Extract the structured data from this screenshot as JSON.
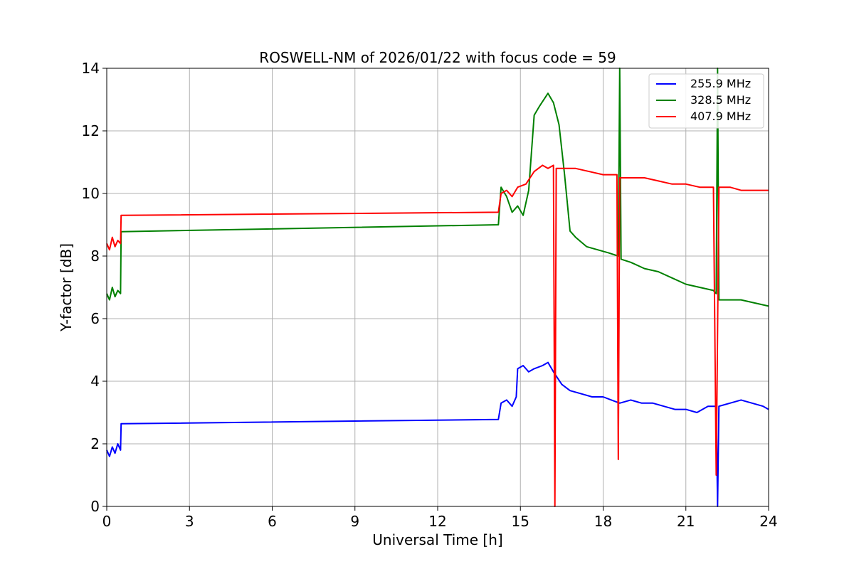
{
  "chart_data": {
    "type": "line",
    "title": "ROSWELL-NM of 2026/01/22 with focus code = 59",
    "xlabel": "Universal Time [h]",
    "ylabel": "Y-factor [dB]",
    "xlim": [
      0,
      24
    ],
    "ylim": [
      0,
      14
    ],
    "xticks": [
      0,
      3,
      6,
      9,
      12,
      15,
      18,
      21,
      24
    ],
    "yticks": [
      0,
      2,
      4,
      6,
      8,
      10,
      12,
      14
    ],
    "grid": true,
    "legend_position": "top-right",
    "series": [
      {
        "name": "255.9 MHz",
        "color": "#0000ff",
        "points": [
          [
            0.0,
            1.8
          ],
          [
            0.1,
            1.6
          ],
          [
            0.2,
            1.9
          ],
          [
            0.3,
            1.7
          ],
          [
            0.4,
            2.0
          ],
          [
            0.5,
            1.8
          ],
          [
            0.52,
            2.64
          ],
          [
            14.2,
            2.78
          ],
          [
            14.3,
            3.3
          ],
          [
            14.5,
            3.4
          ],
          [
            14.7,
            3.2
          ],
          [
            14.85,
            3.5
          ],
          [
            14.9,
            4.4
          ],
          [
            15.1,
            4.5
          ],
          [
            15.3,
            4.3
          ],
          [
            15.5,
            4.4
          ],
          [
            15.8,
            4.5
          ],
          [
            16.0,
            4.6
          ],
          [
            16.2,
            4.3
          ],
          [
            16.5,
            3.9
          ],
          [
            16.8,
            3.7
          ],
          [
            17.2,
            3.6
          ],
          [
            17.6,
            3.5
          ],
          [
            18.0,
            3.5
          ],
          [
            18.3,
            3.4
          ],
          [
            18.6,
            3.3
          ],
          [
            19.0,
            3.4
          ],
          [
            19.4,
            3.3
          ],
          [
            19.8,
            3.3
          ],
          [
            20.2,
            3.2
          ],
          [
            20.6,
            3.1
          ],
          [
            21.0,
            3.1
          ],
          [
            21.4,
            3.0
          ],
          [
            21.8,
            3.2
          ],
          [
            22.1,
            3.2
          ],
          [
            22.15,
            0.0
          ],
          [
            22.2,
            3.2
          ],
          [
            22.6,
            3.3
          ],
          [
            23.0,
            3.4
          ],
          [
            23.4,
            3.3
          ],
          [
            23.8,
            3.2
          ],
          [
            24.0,
            3.1
          ]
        ]
      },
      {
        "name": "328.5 MHz",
        "color": "#008000",
        "points": [
          [
            0.0,
            6.8
          ],
          [
            0.1,
            6.6
          ],
          [
            0.2,
            7.0
          ],
          [
            0.3,
            6.7
          ],
          [
            0.4,
            6.9
          ],
          [
            0.5,
            6.8
          ],
          [
            0.52,
            8.78
          ],
          [
            14.2,
            9.0
          ],
          [
            14.3,
            10.2
          ],
          [
            14.5,
            9.9
          ],
          [
            14.7,
            9.4
          ],
          [
            14.9,
            9.6
          ],
          [
            15.1,
            9.3
          ],
          [
            15.3,
            10.1
          ],
          [
            15.5,
            12.5
          ],
          [
            15.7,
            12.8
          ],
          [
            16.0,
            13.2
          ],
          [
            16.2,
            12.9
          ],
          [
            16.4,
            12.2
          ],
          [
            16.6,
            10.6
          ],
          [
            16.8,
            8.8
          ],
          [
            17.0,
            8.6
          ],
          [
            17.4,
            8.3
          ],
          [
            17.8,
            8.2
          ],
          [
            18.2,
            8.1
          ],
          [
            18.55,
            8.0
          ],
          [
            18.6,
            14.0
          ],
          [
            18.65,
            7.9
          ],
          [
            19.0,
            7.8
          ],
          [
            19.5,
            7.6
          ],
          [
            20.0,
            7.5
          ],
          [
            20.5,
            7.3
          ],
          [
            21.0,
            7.1
          ],
          [
            21.5,
            7.0
          ],
          [
            22.0,
            6.9
          ],
          [
            22.1,
            6.8
          ],
          [
            22.15,
            14.0
          ],
          [
            22.2,
            6.6
          ],
          [
            22.6,
            6.6
          ],
          [
            23.0,
            6.6
          ],
          [
            23.5,
            6.5
          ],
          [
            24.0,
            6.4
          ]
        ]
      },
      {
        "name": "407.9 MHz",
        "color": "#ff0000",
        "points": [
          [
            0.0,
            8.4
          ],
          [
            0.1,
            8.2
          ],
          [
            0.2,
            8.6
          ],
          [
            0.3,
            8.3
          ],
          [
            0.4,
            8.5
          ],
          [
            0.5,
            8.4
          ],
          [
            0.52,
            9.3
          ],
          [
            14.2,
            9.4
          ],
          [
            14.3,
            10.0
          ],
          [
            14.5,
            10.1
          ],
          [
            14.7,
            9.9
          ],
          [
            14.9,
            10.2
          ],
          [
            15.2,
            10.3
          ],
          [
            15.5,
            10.7
          ],
          [
            15.8,
            10.9
          ],
          [
            16.0,
            10.8
          ],
          [
            16.2,
            10.9
          ],
          [
            16.25,
            0.0
          ],
          [
            16.3,
            10.8
          ],
          [
            16.6,
            10.8
          ],
          [
            17.0,
            10.8
          ],
          [
            17.5,
            10.7
          ],
          [
            18.0,
            10.6
          ],
          [
            18.5,
            10.6
          ],
          [
            18.55,
            1.5
          ],
          [
            18.6,
            10.5
          ],
          [
            19.0,
            10.5
          ],
          [
            19.5,
            10.5
          ],
          [
            20.0,
            10.4
          ],
          [
            20.5,
            10.3
          ],
          [
            21.0,
            10.3
          ],
          [
            21.5,
            10.2
          ],
          [
            22.0,
            10.2
          ],
          [
            22.1,
            1.0
          ],
          [
            22.2,
            10.2
          ],
          [
            22.6,
            10.2
          ],
          [
            23.0,
            10.1
          ],
          [
            23.5,
            10.1
          ],
          [
            24.0,
            10.1
          ]
        ]
      }
    ]
  }
}
